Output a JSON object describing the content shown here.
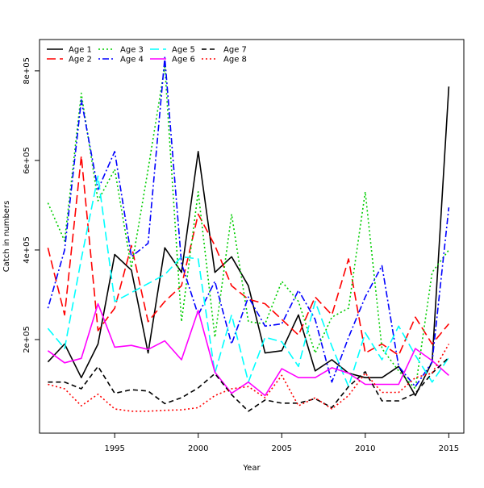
{
  "chart_data": {
    "type": "line",
    "title": "",
    "xlabel": "Year",
    "ylabel": "Catch in numbers",
    "xlim": [
      1990.5,
      2015.9
    ],
    "ylim": [
      -9000,
      870000
    ],
    "x_ticks": [
      1995,
      2000,
      2005,
      2010,
      2015
    ],
    "x_tick_labels": [
      "1995",
      "2000",
      "2005",
      "2010",
      "2015"
    ],
    "y_ticks": [
      200000,
      400000,
      600000,
      800000
    ],
    "y_tick_labels": [
      "2e+05",
      "4e+05",
      "6e+05",
      "8e+05"
    ],
    "legend_position": "top-left",
    "grid": false,
    "x": [
      1991,
      1992,
      1993,
      1994,
      1995,
      1996,
      1997,
      1998,
      1999,
      2000,
      2001,
      2002,
      2003,
      2004,
      2005,
      2006,
      2007,
      2008,
      2009,
      2010,
      2011,
      2012,
      2013,
      2014,
      2015
    ],
    "series": [
      {
        "name": "Age 1",
        "color": "#000000",
        "dash": "solid",
        "values": [
          150000,
          190000,
          115000,
          190000,
          390000,
          355000,
          170000,
          405000,
          350000,
          620000,
          350000,
          385000,
          320000,
          170000,
          175000,
          255000,
          130000,
          155000,
          125000,
          115000,
          115000,
          140000,
          75000,
          150000,
          765000
        ]
      },
      {
        "name": "Age 2",
        "color": "#ff0000",
        "dash": "longdash",
        "values": [
          405000,
          255000,
          610000,
          220000,
          270000,
          410000,
          240000,
          285000,
          320000,
          480000,
          410000,
          320000,
          290000,
          280000,
          245000,
          210000,
          295000,
          255000,
          380000,
          170000,
          190000,
          165000,
          250000,
          190000,
          235000
        ]
      },
      {
        "name": "Age 3",
        "color": "#00cd00",
        "dash": "dotted",
        "values": [
          505000,
          420000,
          750000,
          510000,
          580000,
          360000,
          580000,
          810000,
          240000,
          530000,
          205000,
          480000,
          240000,
          235000,
          330000,
          285000,
          170000,
          250000,
          270000,
          530000,
          180000,
          130000,
          90000,
          350000,
          400000
        ]
      },
      {
        "name": "Age 4",
        "color": "#0000ff",
        "dash": "dotdash",
        "values": [
          270000,
          400000,
          735000,
          535000,
          620000,
          385000,
          415000,
          830000,
          370000,
          255000,
          330000,
          190000,
          295000,
          230000,
          235000,
          310000,
          245000,
          105000,
          205000,
          295000,
          365000,
          140000,
          95000,
          150000,
          495000
        ]
      },
      {
        "name": "Age 5",
        "color": "#00ffff",
        "dash": "longdash",
        "values": [
          225000,
          180000,
          380000,
          565000,
          285000,
          305000,
          325000,
          345000,
          385000,
          380000,
          125000,
          255000,
          105000,
          205000,
          195000,
          140000,
          285000,
          185000,
          95000,
          215000,
          155000,
          230000,
          165000,
          105000,
          160000
        ]
      },
      {
        "name": "Age 6",
        "color": "#ff00ff",
        "dash": "solid",
        "values": [
          175000,
          148000,
          158000,
          280000,
          183000,
          187000,
          178000,
          197000,
          155000,
          265000,
          127000,
          80000,
          105000,
          75000,
          135000,
          115000,
          115000,
          137000,
          125000,
          100000,
          100000,
          100000,
          180000,
          153000,
          120000
        ]
      },
      {
        "name": "Age 7",
        "color": "#000000",
        "dash": "dashed",
        "values": [
          105000,
          105000,
          90000,
          140000,
          80000,
          88000,
          85000,
          57000,
          70000,
          92000,
          124000,
          77000,
          40000,
          65000,
          58000,
          58000,
          68000,
          48000,
          95000,
          128000,
          63000,
          63000,
          80000,
          125000,
          160000
        ]
      },
      {
        "name": "Age 8",
        "color": "#ff0000",
        "dash": "dotted",
        "values": [
          100000,
          90000,
          52000,
          78000,
          45000,
          40000,
          40000,
          42000,
          43000,
          48000,
          75000,
          90000,
          95000,
          70000,
          120000,
          52000,
          70000,
          45000,
          75000,
          125000,
          82000,
          82000,
          115000,
          125000,
          190000
        ]
      }
    ]
  }
}
